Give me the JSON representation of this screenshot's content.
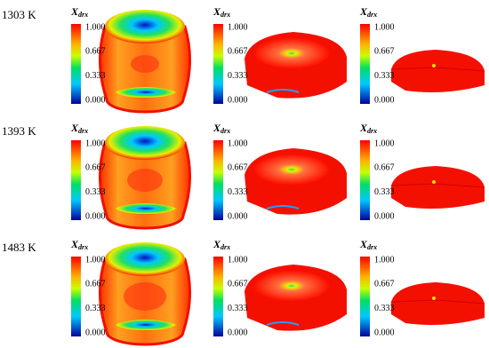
{
  "rows": [
    {
      "label": "1303 K"
    },
    {
      "label": "1393 K"
    },
    {
      "label": "1483 K"
    }
  ],
  "colorbar": {
    "symbol": "X",
    "subscript": "drx",
    "ticks": [
      "1.000",
      "0.667",
      "0.333",
      "0.000"
    ]
  }
}
